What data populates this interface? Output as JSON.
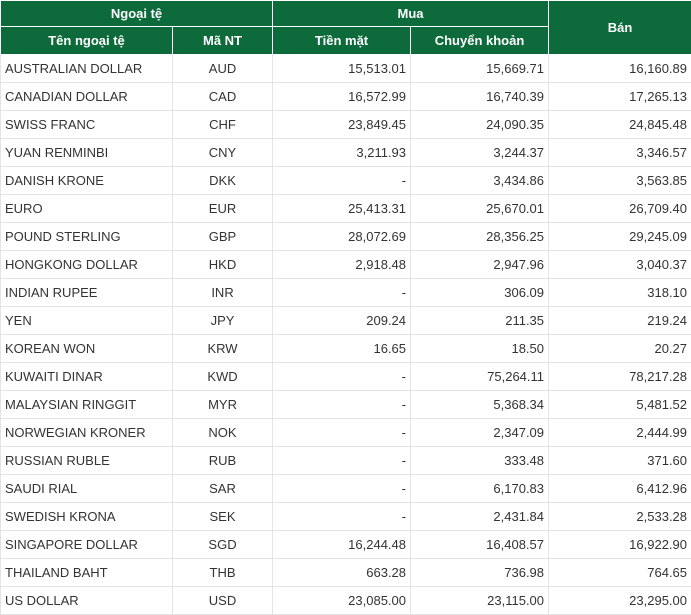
{
  "header": {
    "group_currency": "Ngoại tệ",
    "group_buy": "Mua",
    "sell": "Bán",
    "col_name": "Tên ngoại tệ",
    "col_code": "Mã NT",
    "col_cash": "Tiền mặt",
    "col_transfer": "Chuyển khoản"
  },
  "table": {
    "rows": [
      [
        "AUSTRALIAN DOLLAR",
        "AUD",
        "15,513.01",
        "15,669.71",
        "16,160.89"
      ],
      [
        "CANADIAN DOLLAR",
        "CAD",
        "16,572.99",
        "16,740.39",
        "17,265.13"
      ],
      [
        "SWISS FRANC",
        "CHF",
        "23,849.45",
        "24,090.35",
        "24,845.48"
      ],
      [
        "YUAN RENMINBI",
        "CNY",
        "3,211.93",
        "3,244.37",
        "3,346.57"
      ],
      [
        "DANISH KRONE",
        "DKK",
        "-",
        "3,434.86",
        "3,563.85"
      ],
      [
        "EURO",
        "EUR",
        "25,413.31",
        "25,670.01",
        "26,709.40"
      ],
      [
        "POUND STERLING",
        "GBP",
        "28,072.69",
        "28,356.25",
        "29,245.09"
      ],
      [
        "HONGKONG DOLLAR",
        "HKD",
        "2,918.48",
        "2,947.96",
        "3,040.37"
      ],
      [
        "INDIAN RUPEE",
        "INR",
        "-",
        "306.09",
        "318.10"
      ],
      [
        "YEN",
        "JPY",
        "209.24",
        "211.35",
        "219.24"
      ],
      [
        "KOREAN WON",
        "KRW",
        "16.65",
        "18.50",
        "20.27"
      ],
      [
        "KUWAITI DINAR",
        "KWD",
        "-",
        "75,264.11",
        "78,217.28"
      ],
      [
        "MALAYSIAN RINGGIT",
        "MYR",
        "-",
        "5,368.34",
        "5,481.52"
      ],
      [
        "NORWEGIAN KRONER",
        "NOK",
        "-",
        "2,347.09",
        "2,444.99"
      ],
      [
        "RUSSIAN RUBLE",
        "RUB",
        "-",
        "333.48",
        "371.60"
      ],
      [
        "SAUDI RIAL",
        "SAR",
        "-",
        "6,170.83",
        "6,412.96"
      ],
      [
        "SWEDISH KRONA",
        "SEK",
        "-",
        "2,431.84",
        "2,533.28"
      ],
      [
        "SINGAPORE DOLLAR",
        "SGD",
        "16,244.48",
        "16,408.57",
        "16,922.90"
      ],
      [
        "THAILAND BAHT",
        "THB",
        "663.28",
        "736.98",
        "764.65"
      ],
      [
        "US DOLLAR",
        "USD",
        "23,085.00",
        "23,115.00",
        "23,295.00"
      ]
    ]
  }
}
